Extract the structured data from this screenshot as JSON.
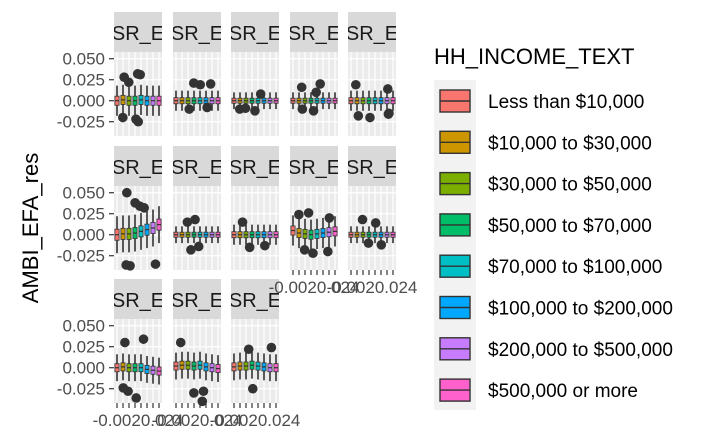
{
  "chart_data": {
    "type": "boxplot",
    "facet_strip_label": "SR_E",
    "ylabel": "AMBI_EFA_res",
    "ylim": [
      -0.042,
      0.058
    ],
    "yticks": [
      {
        "value": 0.05,
        "label": "0.050"
      },
      {
        "value": 0.025,
        "label": "0.025"
      },
      {
        "value": 0.0,
        "label": "0.000"
      },
      {
        "value": -0.025,
        "label": "-0.025"
      }
    ],
    "x_axis_tick_text": "-0.0020.024",
    "legend": {
      "title": "HH_INCOME_TEXT",
      "position": "right",
      "entries": [
        {
          "label": "Less than $10,000",
          "color": "#F8766D"
        },
        {
          "label": "$10,000 to $30,000",
          "color": "#CD9600"
        },
        {
          "label": "$30,000 to $50,000",
          "color": "#7CAE00"
        },
        {
          "label": "$50,000 to $70,000",
          "color": "#00BE67"
        },
        {
          "label": "$70,000 to $100,000",
          "color": "#00BFC4"
        },
        {
          "label": "$100,000 to $200,000",
          "color": "#00A9FF"
        },
        {
          "label": "$200,000 to $500,000",
          "color": "#C77CFF"
        },
        {
          "label": "$500,000 or more",
          "color": "#FF61CC"
        }
      ]
    },
    "panels": [
      {
        "medians": [
          0.0,
          0.001,
          0.0,
          0.0,
          0.001,
          0.0,
          0.0,
          0.0
        ],
        "spread": 0.018,
        "outliers": [
          0.032,
          0.031,
          0.028,
          0.022,
          -0.022,
          -0.025,
          -0.02
        ]
      },
      {
        "medians": [
          0.0,
          0.0,
          0.0,
          0.0,
          0.0,
          0.0,
          0.0,
          0.0
        ],
        "spread": 0.012,
        "outliers": [
          0.02,
          0.019,
          0.021,
          -0.01,
          -0.008
        ]
      },
      {
        "medians": [
          0.0,
          0.0,
          0.0,
          0.0,
          0.0,
          0.0,
          0.0,
          0.0
        ],
        "spread": 0.01,
        "outliers": [
          0.008,
          -0.01,
          -0.012,
          -0.009
        ]
      },
      {
        "medians": [
          0.0,
          0.0,
          0.0,
          0.0,
          0.0,
          0.0,
          0.0,
          0.0
        ],
        "spread": 0.01,
        "outliers": [
          0.02,
          0.016,
          0.01,
          -0.012,
          -0.01
        ]
      },
      {
        "medians": [
          0.0,
          0.0,
          0.0,
          0.0,
          0.0,
          0.0,
          0.0,
          0.0
        ],
        "spread": 0.012,
        "outliers": [
          0.019,
          0.014,
          -0.015,
          -0.018,
          -0.02,
          -0.016
        ]
      },
      {
        "medians": [
          0.0,
          0.001,
          0.001,
          0.002,
          0.004,
          0.006,
          0.008,
          0.012
        ],
        "spread": 0.022,
        "outliers": [
          0.05,
          0.038,
          0.034,
          0.032,
          -0.037,
          -0.036,
          -0.035
        ]
      },
      {
        "medians": [
          0.0,
          0.0,
          0.0,
          0.0,
          0.0,
          0.0,
          0.0,
          0.0
        ],
        "spread": 0.01,
        "outliers": [
          0.018,
          0.015,
          -0.014,
          -0.018
        ]
      },
      {
        "medians": [
          0.0,
          0.0,
          0.0,
          0.0,
          0.0,
          0.0,
          0.0,
          0.0
        ],
        "spread": 0.012,
        "outliers": [
          0.015,
          -0.013,
          -0.015
        ]
      },
      {
        "medians": [
          0.005,
          0.002,
          0.001,
          0.0,
          0.001,
          0.002,
          0.003,
          0.004
        ],
        "spread": 0.018,
        "outliers": [
          0.026,
          0.024,
          0.02,
          -0.018,
          -0.02,
          -0.022
        ]
      },
      {
        "medians": [
          0.0,
          0.0,
          0.0,
          0.0,
          0.0,
          0.0,
          0.0,
          0.0
        ],
        "spread": 0.01,
        "outliers": [
          0.018,
          0.014,
          -0.01,
          -0.012
        ]
      },
      {
        "medians": [
          0.0,
          0.001,
          0.0,
          0.0,
          0.0,
          -0.002,
          -0.003,
          -0.004
        ],
        "spread": 0.016,
        "outliers": [
          0.034,
          0.03,
          -0.028,
          -0.036,
          -0.024
        ]
      },
      {
        "medians": [
          0.002,
          0.003,
          0.003,
          0.002,
          0.003,
          0.001,
          0.0,
          -0.001
        ],
        "spread": 0.016,
        "outliers": [
          0.03,
          -0.03,
          -0.028,
          -0.04
        ]
      },
      {
        "medians": [
          0.001,
          0.002,
          0.002,
          0.003,
          0.002,
          0.001,
          0.0,
          0.0
        ],
        "spread": 0.016,
        "outliers": [
          0.024,
          0.022,
          -0.025
        ]
      }
    ]
  }
}
